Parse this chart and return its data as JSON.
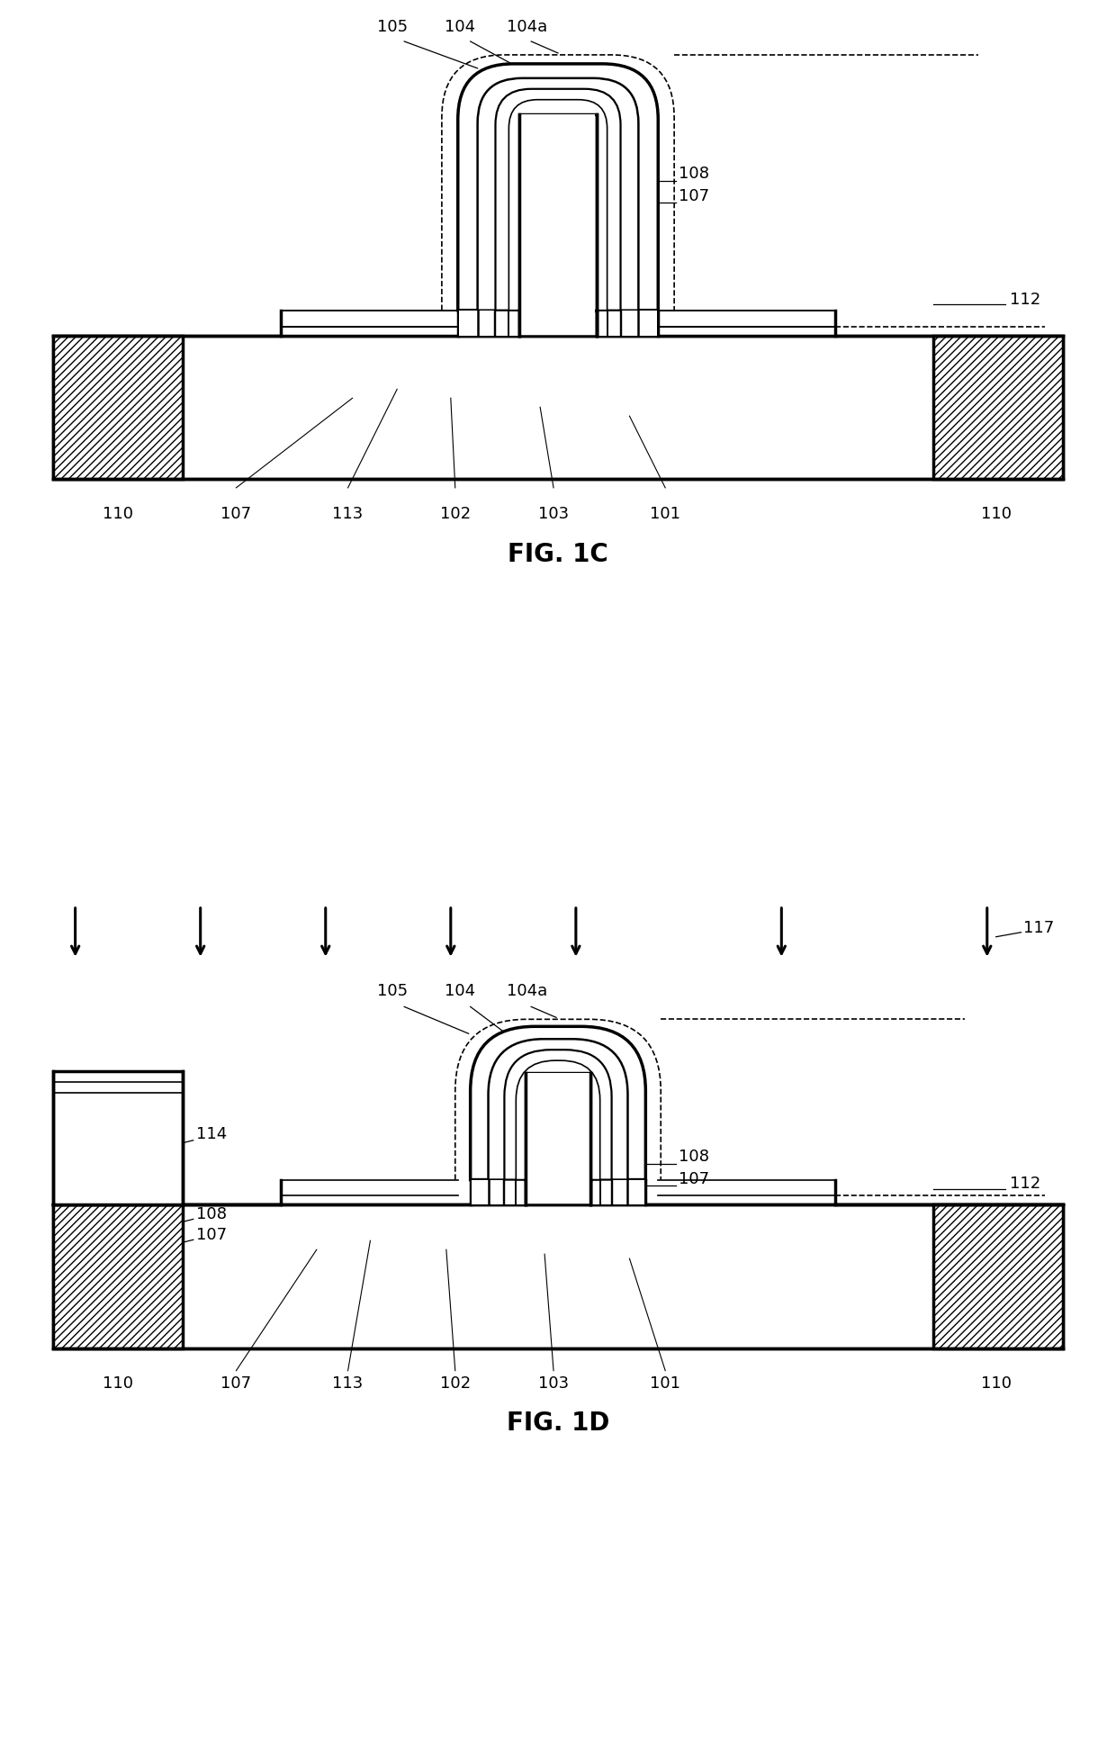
{
  "fig_width": 12.4,
  "fig_height": 19.53,
  "bg_color": "#ffffff",
  "line_color": "#000000",
  "lw_thick": 2.5,
  "lw_med": 1.8,
  "lw_thin": 1.2,
  "label_fontsize": 12,
  "fig_label_fontsize": 20,
  "fig1c_title": "FIG. 1C",
  "fig1d_title": "FIG. 1D"
}
